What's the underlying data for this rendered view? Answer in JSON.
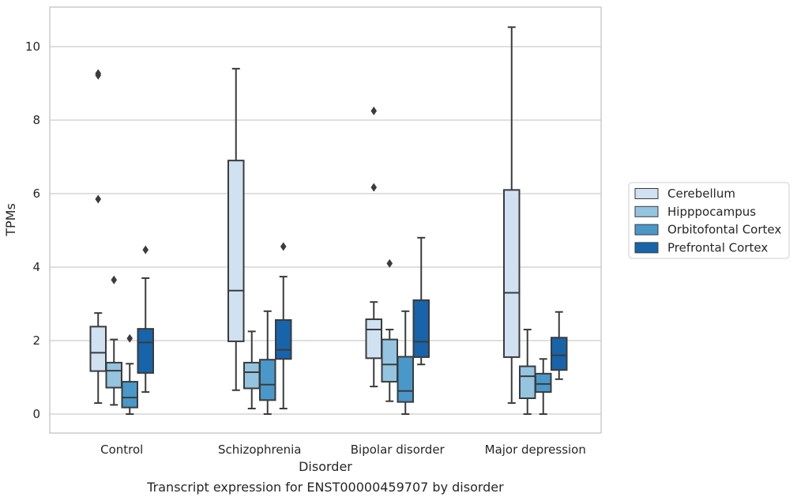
{
  "caption": "Transcript expression for ENST00000459707 by disorder",
  "colors": {
    "Cerebellum": "#d0e1f2",
    "Hipppocampus": "#94c4df",
    "Orbitofontal Cortex": "#4a98c9",
    "Prefrontal Cortex": "#1764ab",
    "line": "#3b3b3b",
    "grid": "#cccccc",
    "frame": "#cccccc"
  },
  "chart_data": {
    "type": "box",
    "xlabel": "Disorder",
    "ylabel": "TPMs",
    "ylim": [
      -0.5,
      11.1
    ],
    "yticks": [
      0,
      2,
      4,
      6,
      8,
      10
    ],
    "grid": "horizontal",
    "legend_position": "right",
    "categories": [
      "Control",
      "Schizophrenia",
      "Bipolar disorder",
      "Major depression"
    ],
    "series": [
      {
        "name": "Cerebellum",
        "boxes": [
          {
            "whislo": 0.3,
            "q1": 1.17,
            "median": 1.67,
            "q3": 2.38,
            "whishi": 2.75,
            "fliers": [
              5.85,
              9.22,
              9.27
            ]
          },
          {
            "whislo": 0.65,
            "q1": 1.98,
            "median": 3.36,
            "q3": 6.9,
            "whishi": 9.4,
            "fliers": []
          },
          {
            "whislo": 0.75,
            "q1": 1.52,
            "median": 2.3,
            "q3": 2.58,
            "whishi": 3.05,
            "fliers": [
              6.17,
              8.25
            ]
          },
          {
            "whislo": 0.3,
            "q1": 1.55,
            "median": 3.3,
            "q3": 6.1,
            "whishi": 10.53,
            "fliers": []
          }
        ]
      },
      {
        "name": "Hipppocampus",
        "boxes": [
          {
            "whislo": 0.25,
            "q1": 0.72,
            "median": 1.18,
            "q3": 1.4,
            "whishi": 2.03,
            "fliers": [
              3.65
            ]
          },
          {
            "whislo": 0.15,
            "q1": 0.7,
            "median": 1.14,
            "q3": 1.4,
            "whishi": 2.25,
            "fliers": []
          },
          {
            "whislo": 0.35,
            "q1": 0.88,
            "median": 1.35,
            "q3": 2.03,
            "whishi": 2.3,
            "fliers": [
              4.1
            ]
          },
          {
            "whislo": 0.0,
            "q1": 0.43,
            "median": 1.03,
            "q3": 1.3,
            "whishi": 2.3,
            "fliers": []
          }
        ]
      },
      {
        "name": "Orbitofontal Cortex",
        "boxes": [
          {
            "whislo": 0.0,
            "q1": 0.18,
            "median": 0.45,
            "q3": 0.88,
            "whishi": 1.37,
            "fliers": [
              2.06
            ]
          },
          {
            "whislo": 0.0,
            "q1": 0.38,
            "median": 0.8,
            "q3": 1.48,
            "whishi": 2.8,
            "fliers": []
          },
          {
            "whislo": 0.0,
            "q1": 0.33,
            "median": 0.63,
            "q3": 1.56,
            "whishi": 2.8,
            "fliers": []
          },
          {
            "whislo": 0.0,
            "q1": 0.6,
            "median": 0.82,
            "q3": 1.1,
            "whishi": 1.5,
            "fliers": []
          }
        ]
      },
      {
        "name": "Prefrontal Cortex",
        "boxes": [
          {
            "whislo": 0.6,
            "q1": 1.12,
            "median": 1.95,
            "q3": 2.32,
            "whishi": 3.7,
            "fliers": [
              4.47
            ]
          },
          {
            "whislo": 0.15,
            "q1": 1.5,
            "median": 1.75,
            "q3": 2.56,
            "whishi": 3.74,
            "fliers": [
              4.56
            ]
          },
          {
            "whislo": 1.35,
            "q1": 1.55,
            "median": 1.97,
            "q3": 3.1,
            "whishi": 4.8,
            "fliers": []
          },
          {
            "whislo": 0.95,
            "q1": 1.2,
            "median": 1.6,
            "q3": 2.08,
            "whishi": 2.78,
            "fliers": []
          }
        ]
      }
    ]
  }
}
